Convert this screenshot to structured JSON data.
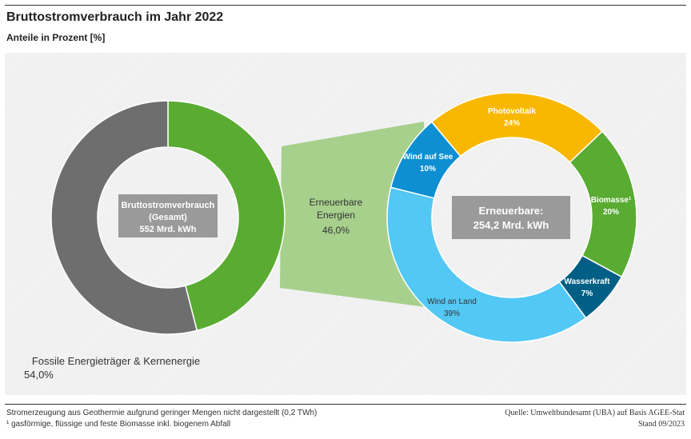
{
  "title": "Bruttostromverbrauch im Jahr 2022",
  "subtitle": "Anteile in Prozent [%]",
  "chart_data": [
    {
      "type": "pie",
      "name": "Bruttostromverbrauch",
      "center_label": [
        "Bruttostromverbrauch",
        "(Gesamt)",
        "552 Mrd. kWh"
      ],
      "slices": [
        {
          "label": "Erneuerbare Energien",
          "value": 46.0,
          "value_label": "46,0%",
          "color": "#5aab32"
        },
        {
          "label": "Fossile Energieträger & Kernenergie",
          "value": 54.0,
          "value_label": "54,0%",
          "color": "#6e6e6e"
        }
      ]
    },
    {
      "type": "pie",
      "name": "Erneuerbare",
      "center_label": [
        "Erneuerbare:",
        "254,2 Mrd. kWh"
      ],
      "slices": [
        {
          "label": "Photovoltaik",
          "value": 24,
          "value_label": "24%",
          "color": "#f9b800"
        },
        {
          "label": "Biomasse¹",
          "value": 20,
          "value_label": "20%",
          "color": "#5aab32"
        },
        {
          "label": "Wasserkraft",
          "value": 7,
          "value_label": "7%",
          "color": "#005f85"
        },
        {
          "label": "Wind an Land",
          "value": 39,
          "value_label": "39%",
          "color": "#53c8f5"
        },
        {
          "label": "Wind auf See",
          "value": 10,
          "value_label": "10%",
          "color": "#0d8fd1"
        }
      ]
    }
  ],
  "footer": {
    "note1": "Stromerzeugung aus Geothermie aufgrund geringer Mengen nicht dargestellt (0,2 TWh)",
    "note2": "¹ gasförmige, flüssige und feste Biomasse inkl. biogenem Abfall",
    "source": "Quelle: Umweltbundesamt (UBA) auf Basis AGEE-Stat",
    "date": "Stand 09/2023"
  }
}
